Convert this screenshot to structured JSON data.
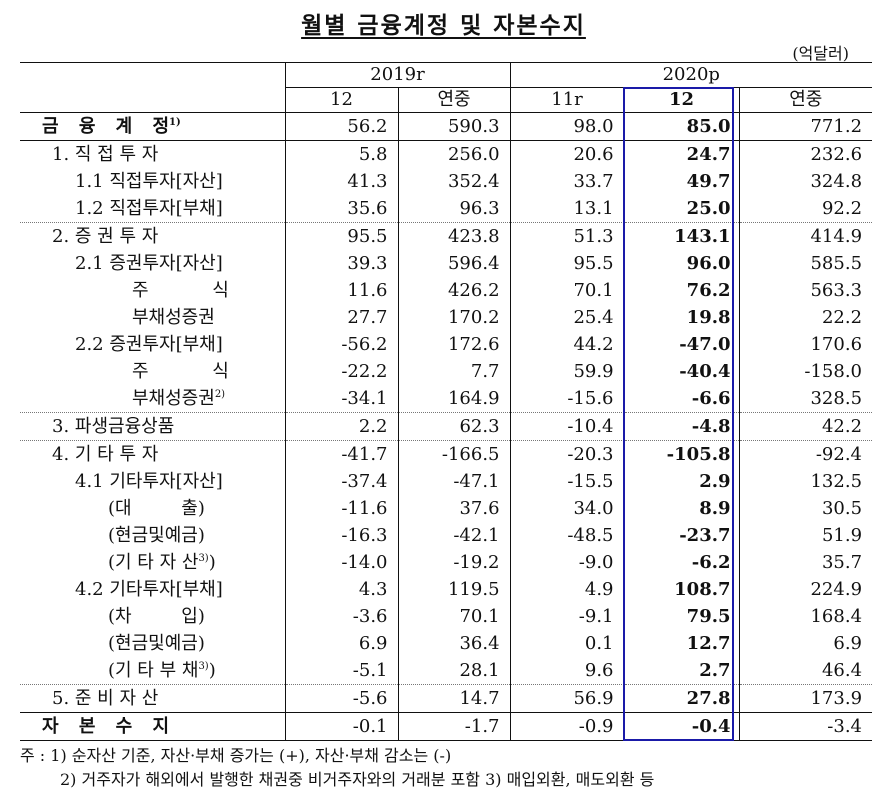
{
  "title": "월별 금융계정 및 자본수지",
  "unit": "(억달러)",
  "header": {
    "year_a": "2019r",
    "year_b": "2020p",
    "cols": [
      "12",
      "연중",
      "11r",
      "12",
      "연중"
    ]
  },
  "rows": [
    {
      "label": "금 융 계 정",
      "sup": "1)",
      "values": [
        "56.2",
        "590.3",
        "98.0",
        "85.0",
        "771.2"
      ]
    },
    {
      "label": "1. 직 접 투 자",
      "values": [
        "5.8",
        "256.0",
        "20.6",
        "24.7",
        "232.6"
      ]
    },
    {
      "label": "1.1 직접투자[자산]",
      "values": [
        "41.3",
        "352.4",
        "33.7",
        "49.7",
        "324.8"
      ]
    },
    {
      "label": "1.2 직접투자[부채]",
      "values": [
        "35.6",
        "96.3",
        "13.1",
        "25.0",
        "92.2"
      ]
    },
    {
      "label": "2. 증 권 투 자",
      "values": [
        "95.5",
        "423.8",
        "51.3",
        "143.1",
        "414.9"
      ]
    },
    {
      "label": "2.1 증권투자[자산]",
      "values": [
        "39.3",
        "596.4",
        "95.5",
        "96.0",
        "585.5"
      ]
    },
    {
      "label": "주 식",
      "values": [
        "11.6",
        "426.2",
        "70.1",
        "76.2",
        "563.3"
      ]
    },
    {
      "label": "부채성증권",
      "values": [
        "27.7",
        "170.2",
        "25.4",
        "19.8",
        "22.2"
      ]
    },
    {
      "label": "2.2 증권투자[부채]",
      "values": [
        "-56.2",
        "172.6",
        "44.2",
        "-47.0",
        "170.6"
      ]
    },
    {
      "label": "주 식",
      "values": [
        "-22.2",
        "7.7",
        "59.9",
        "-40.4",
        "-158.0"
      ]
    },
    {
      "label": "부채성증권",
      "sup": "2)",
      "values": [
        "-34.1",
        "164.9",
        "-15.6",
        "-6.6",
        "328.5"
      ]
    },
    {
      "label": "3. 파생금융상품",
      "values": [
        "2.2",
        "62.3",
        "-10.4",
        "-4.8",
        "42.2"
      ]
    },
    {
      "label": "4. 기 타 투 자",
      "values": [
        "-41.7",
        "-166.5",
        "-20.3",
        "-105.8",
        "-92.4"
      ]
    },
    {
      "label": "4.1 기타투자[자산]",
      "values": [
        "-37.4",
        "-47.1",
        "-15.5",
        "2.9",
        "132.5"
      ]
    },
    {
      "label": "(대 출)",
      "values": [
        "-11.6",
        "37.6",
        "34.0",
        "8.9",
        "30.5"
      ]
    },
    {
      "label": "(현금및예금)",
      "values": [
        "-16.3",
        "-42.1",
        "-48.5",
        "-23.7",
        "51.9"
      ]
    },
    {
      "label": "(기 타 자 산",
      "sup": "3)",
      "close": ")",
      "values": [
        "-14.0",
        "-19.2",
        "-9.0",
        "-6.2",
        "35.7"
      ]
    },
    {
      "label": "4.2 기타투자[부채]",
      "values": [
        "4.3",
        "119.5",
        "4.9",
        "108.7",
        "224.9"
      ]
    },
    {
      "label": "(차 입)",
      "values": [
        "-3.6",
        "70.1",
        "-9.1",
        "79.5",
        "168.4"
      ]
    },
    {
      "label": "(현금및예금)",
      "values": [
        "6.9",
        "36.4",
        "0.1",
        "12.7",
        "6.9"
      ]
    },
    {
      "label": "(기 타 부 채",
      "sup": "3)",
      "close": ")",
      "values": [
        "-5.1",
        "28.1",
        "9.6",
        "2.7",
        "46.4"
      ]
    },
    {
      "label": "5. 준 비 자 산",
      "values": [
        "-5.6",
        "14.7",
        "56.9",
        "27.8",
        "173.9"
      ]
    },
    {
      "label": "자 본 수 지",
      "values": [
        "-0.1",
        "-1.7",
        "-0.9",
        "-0.4",
        "-3.4"
      ]
    }
  ],
  "notes": {
    "line1": "주 : 1) 순자산 기준, 자산·부채 증가는 (+), 자산·부채 감소는 (-)",
    "line2": "2) 거주자가 해외에서 발행한 채권중 비거주자와의 거래분 포함  3) 매입외환, 매도외환 등"
  }
}
